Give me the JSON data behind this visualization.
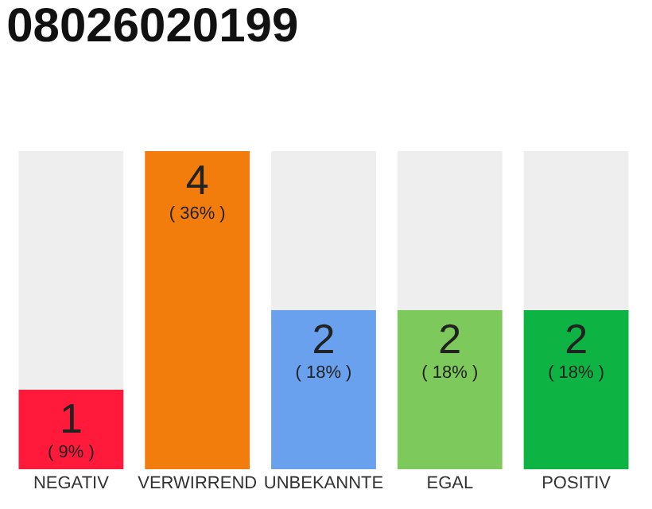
{
  "chart_data": {
    "type": "bar",
    "title": "08026020199",
    "categories": [
      "NEGATIV",
      "VERWIRREND",
      "UNBEKANNTE",
      "EGAL",
      "POSITIV"
    ],
    "values": [
      1,
      4,
      2,
      2,
      2
    ],
    "colors": [
      "#ff1a3c",
      "#f27d0c",
      "#6aa1ef",
      "#7ec95c",
      "#0db343"
    ],
    "value_labels": [
      "1\n( 9% )",
      "4\n( 36% )",
      "2\n( 18% )",
      "2\n( 18% )",
      "2\n( 18% )"
    ],
    "grid": false,
    "legend": false
  }
}
